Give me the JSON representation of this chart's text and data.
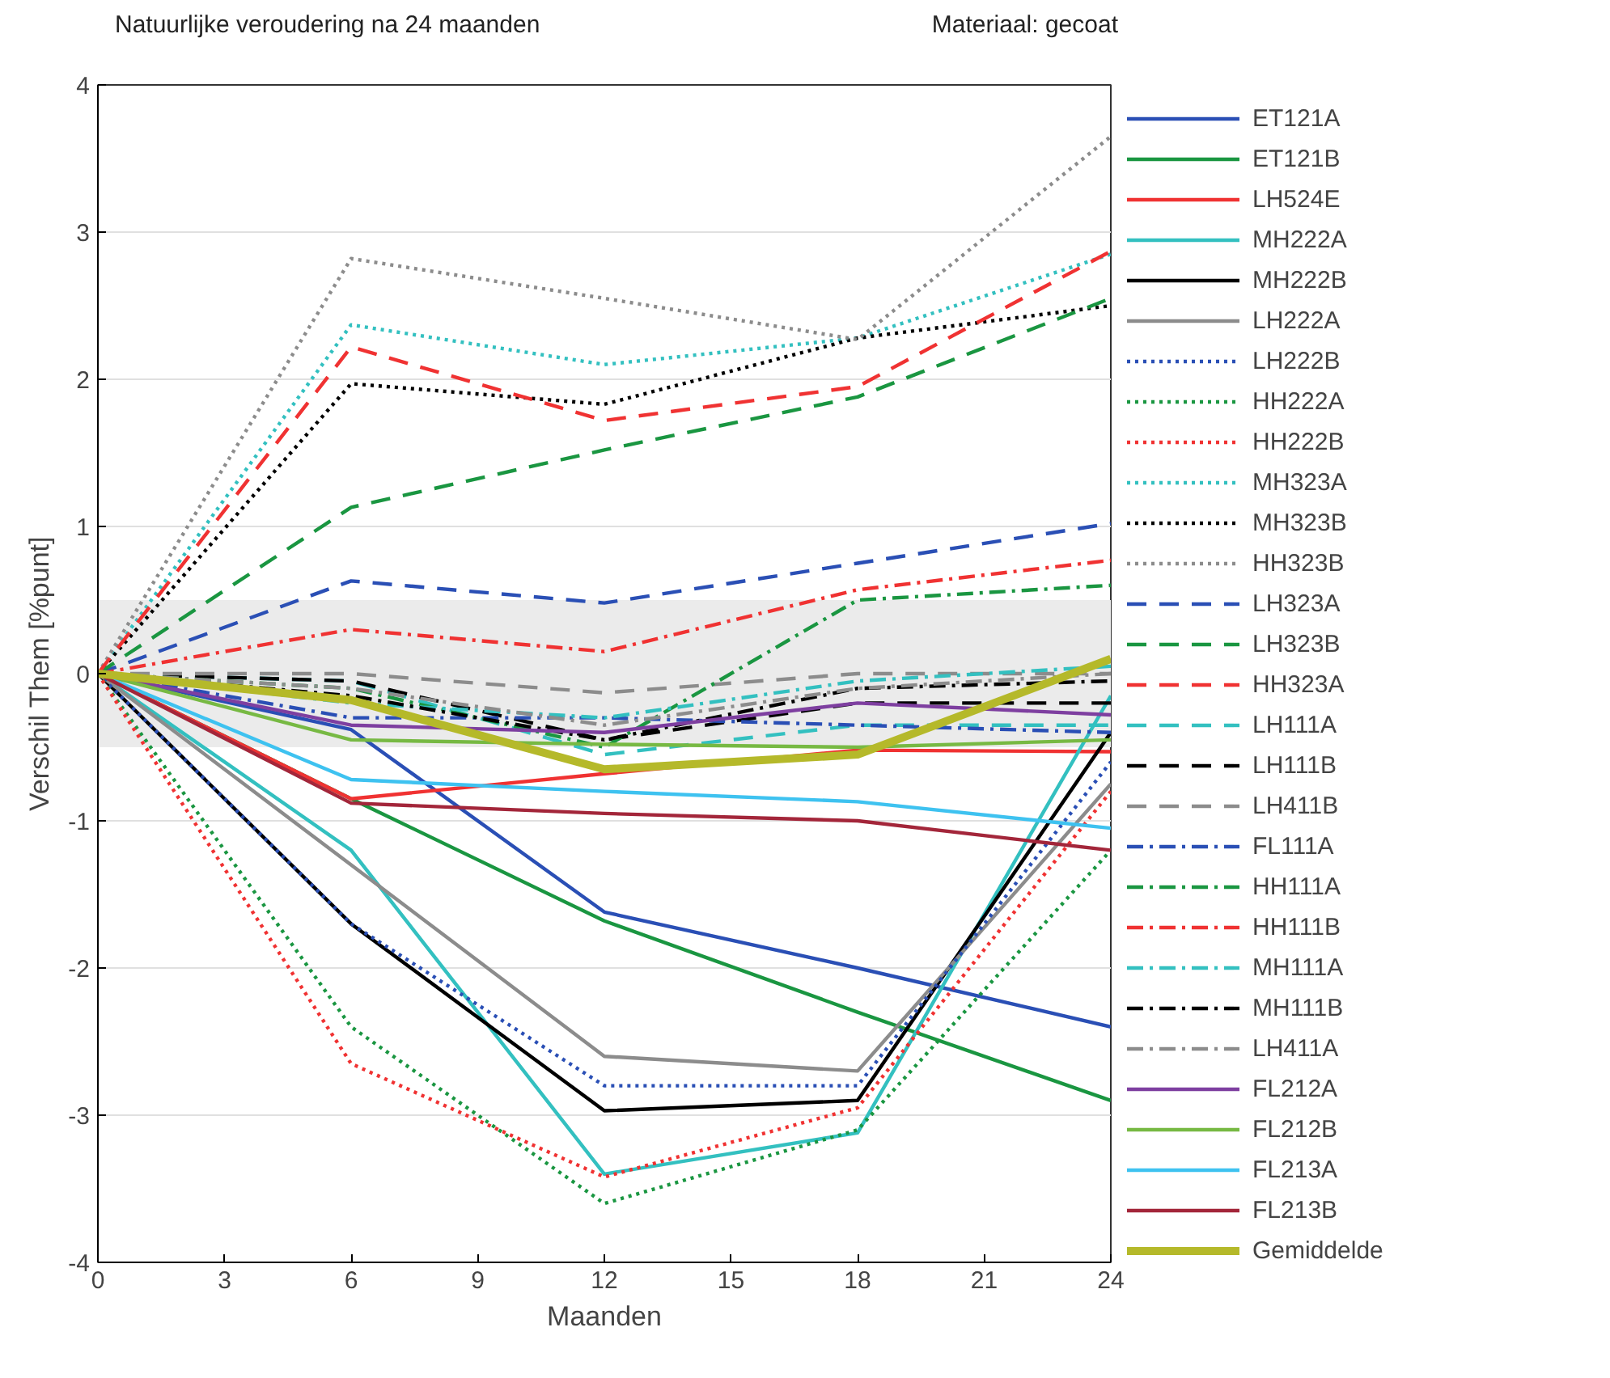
{
  "chart_data": {
    "type": "line",
    "title": "Natuurlijke veroudering na 24 maanden",
    "subtitle": "Materiaal: gecoat",
    "xlabel": "Maanden",
    "ylabel": "Verschil Them [%punt]",
    "x": [
      0,
      6,
      12,
      18,
      24
    ],
    "xlim": [
      0,
      24
    ],
    "xticks": [
      0,
      3,
      6,
      9,
      12,
      15,
      18,
      21,
      24
    ],
    "ylim": [
      -4,
      4
    ],
    "yticks": [
      -4,
      -3,
      -2,
      -1,
      0,
      1,
      2,
      3,
      4
    ],
    "grid": "y",
    "legend": "right",
    "marker": "none",
    "bands": [
      {
        "axis": "y",
        "from": -0.5,
        "to": 0.5,
        "label": null,
        "color": "#ebebeb"
      }
    ],
    "series": [
      {
        "name": "ET121A",
        "color": "#2a4fb5",
        "line_style": "solid",
        "values": [
          0,
          -0.38,
          -1.62,
          -2.0,
          -2.4
        ]
      },
      {
        "name": "ET121B",
        "color": "#1a9641",
        "line_style": "solid",
        "values": [
          0,
          -0.85,
          -1.68,
          -2.3,
          -2.9
        ]
      },
      {
        "name": "LH524E",
        "color": "#f03232",
        "line_style": "solid",
        "values": [
          0,
          -0.85,
          -0.68,
          -0.52,
          -0.53
        ]
      },
      {
        "name": "MH222A",
        "color": "#33c0c0",
        "line_style": "solid",
        "values": [
          0,
          -1.2,
          -3.4,
          -3.12,
          -0.15
        ]
      },
      {
        "name": "MH222B",
        "color": "#000000",
        "line_style": "solid",
        "values": [
          0,
          -1.7,
          -2.97,
          -2.9,
          -0.4
        ]
      },
      {
        "name": "LH222A",
        "color": "#8c8c8c",
        "line_style": "solid",
        "values": [
          0,
          -1.3,
          -2.6,
          -2.7,
          -0.75
        ]
      },
      {
        "name": "LH222B",
        "color": "#2a4fb5",
        "line_style": "dotted",
        "values": [
          0,
          -1.7,
          -2.8,
          -2.8,
          -0.6
        ]
      },
      {
        "name": "HH222A",
        "color": "#1a9641",
        "line_style": "dotted",
        "values": [
          0,
          -2.4,
          -3.6,
          -3.1,
          -1.2
        ]
      },
      {
        "name": "HH222B",
        "color": "#f03232",
        "line_style": "dotted",
        "values": [
          0,
          -2.65,
          -3.42,
          -2.95,
          -0.8
        ]
      },
      {
        "name": "MH323A",
        "color": "#33c0c0",
        "line_style": "dotted",
        "values": [
          0,
          2.37,
          2.1,
          2.28,
          2.85
        ]
      },
      {
        "name": "MH323B",
        "color": "#000000",
        "line_style": "dotted",
        "values": [
          0,
          1.97,
          1.83,
          2.28,
          2.5
        ]
      },
      {
        "name": "HH323B",
        "color": "#8c8c8c",
        "line_style": "dotted",
        "values": [
          0,
          2.82,
          2.55,
          2.27,
          3.65
        ]
      },
      {
        "name": "LH323A",
        "color": "#2a4fb5",
        "line_style": "dashed",
        "values": [
          0,
          0.63,
          0.48,
          0.75,
          1.02
        ]
      },
      {
        "name": "LH323B",
        "color": "#1a9641",
        "line_style": "dashed",
        "values": [
          0,
          1.13,
          1.52,
          1.88,
          2.55
        ]
      },
      {
        "name": "HH323A",
        "color": "#f03232",
        "line_style": "dashed",
        "values": [
          0,
          2.22,
          1.72,
          1.95,
          2.87
        ]
      },
      {
        "name": "LH111A",
        "color": "#33c0c0",
        "line_style": "dashed",
        "values": [
          0,
          -0.05,
          -0.55,
          -0.35,
          -0.35
        ]
      },
      {
        "name": "LH111B",
        "color": "#000000",
        "line_style": "dashed",
        "values": [
          0,
          -0.05,
          -0.45,
          -0.2,
          -0.2
        ]
      },
      {
        "name": "LH411B",
        "color": "#8c8c8c",
        "line_style": "dashed",
        "values": [
          0,
          0,
          -0.13,
          0,
          0
        ]
      },
      {
        "name": "FL111A",
        "color": "#2a4fb5",
        "line_style": "dashdot",
        "values": [
          0,
          -0.3,
          -0.3,
          -0.35,
          -0.4
        ]
      },
      {
        "name": "HH111A",
        "color": "#1a9641",
        "line_style": "dashdot",
        "values": [
          0,
          -0.1,
          -0.5,
          0.5,
          0.6
        ]
      },
      {
        "name": "HH111B",
        "color": "#f03232",
        "line_style": "dashdot",
        "values": [
          0,
          0.3,
          0.15,
          0.57,
          0.77
        ]
      },
      {
        "name": "MH111A",
        "color": "#33c0c0",
        "line_style": "dashdot",
        "values": [
          0,
          -0.2,
          -0.3,
          -0.05,
          0.05
        ]
      },
      {
        "name": "MH111B",
        "color": "#000000",
        "line_style": "dashdot",
        "values": [
          0,
          -0.15,
          -0.45,
          -0.1,
          -0.05
        ]
      },
      {
        "name": "LH411A",
        "color": "#8c8c8c",
        "line_style": "dashdot",
        "values": [
          0,
          -0.1,
          -0.35,
          -0.1,
          0
        ]
      },
      {
        "name": "FL212A",
        "color": "#7e3fa0",
        "line_style": "solid",
        "values": [
          0,
          -0.35,
          -0.4,
          -0.2,
          -0.28
        ]
      },
      {
        "name": "FL212B",
        "color": "#77b943",
        "line_style": "solid",
        "values": [
          0,
          -0.45,
          -0.48,
          -0.5,
          -0.45
        ]
      },
      {
        "name": "FL213A",
        "color": "#3ec2f0",
        "line_style": "solid",
        "values": [
          0,
          -0.72,
          -0.8,
          -0.87,
          -1.05
        ]
      },
      {
        "name": "FL213B",
        "color": "#a3263a",
        "line_style": "solid",
        "values": [
          0,
          -0.88,
          -0.95,
          -1.0,
          -1.2
        ]
      },
      {
        "name": "Gemiddelde",
        "color": "#b5b92a",
        "line_style": "solid",
        "values": [
          0,
          -0.18,
          -0.65,
          -0.55,
          0.1
        ]
      }
    ]
  }
}
